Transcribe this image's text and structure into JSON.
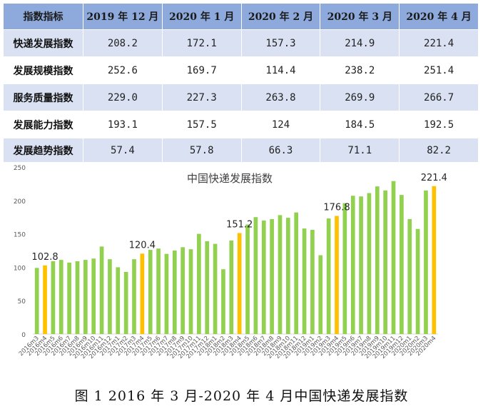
{
  "table": {
    "columns": [
      "指数指标",
      "2019 年 12 月",
      "2020 年 1 月",
      "2020 年 2 月",
      "2020 年 3 月",
      "2020 年 4 月"
    ],
    "rows": [
      {
        "label": "快递发展指数",
        "values": [
          "208.2",
          "172.1",
          "157.3",
          "214.9",
          "221.4"
        ]
      },
      {
        "label": "发展规模指数",
        "values": [
          "252.6",
          "169.7",
          "114.4",
          "238.2",
          "251.4"
        ]
      },
      {
        "label": "服务质量指数",
        "values": [
          "229.0",
          "227.3",
          "263.8",
          "269.9",
          "266.7"
        ]
      },
      {
        "label": "发展能力指数",
        "values": [
          "193.1",
          "157.5",
          "124",
          "184.5",
          "192.5"
        ]
      },
      {
        "label": "发展趋势指数",
        "values": [
          "57.4",
          "57.8",
          "66.3",
          "71.1",
          "82.2"
        ]
      }
    ]
  },
  "chart_data": {
    "type": "bar",
    "title": "中国快递发展指数",
    "ylim": [
      0,
      250
    ],
    "yticks": [
      0,
      50,
      100,
      150,
      200,
      250
    ],
    "grid": false,
    "legend": "none",
    "colors": {
      "normal": "#92d050",
      "highlight": "#ffc000"
    },
    "categories": [
      "2016m3",
      "2016m4",
      "2016m5",
      "2016m6",
      "2016m7",
      "2016m8",
      "2016m9",
      "2016m10",
      "2016m11",
      "2016m12",
      "2017m1",
      "2017m2",
      "2017m3",
      "2017m4",
      "2017m5",
      "2017m6",
      "2017m7",
      "2017m8",
      "2017m9",
      "2017m10",
      "2017m11",
      "2017m12",
      "2018m1",
      "2018m2",
      "2018m3",
      "2018m4",
      "2018m5",
      "2018m6",
      "2018m7",
      "2018m8",
      "2018m9",
      "2018m10",
      "2018m11",
      "2018m12",
      "2019m1",
      "2019m2",
      "2019m3",
      "2019m4",
      "2019m5",
      "2019m6",
      "2019m7",
      "2019m8",
      "2019m9",
      "2019m10",
      "2019m11",
      "2019m12",
      "2020m1",
      "2020m2",
      "2020m3",
      "2020m4"
    ],
    "values": [
      99,
      102.8,
      109,
      111,
      107,
      109,
      111,
      113,
      131,
      112,
      100,
      93,
      112,
      120.4,
      126,
      128,
      120,
      125,
      130,
      127,
      150,
      139,
      135,
      97,
      140,
      151.2,
      164,
      175,
      170,
      172,
      178,
      174,
      182,
      158,
      156,
      118,
      173,
      176.8,
      196,
      207,
      206,
      211,
      221,
      215,
      229,
      208.2,
      172.1,
      157.3,
      214.9,
      221.4
    ],
    "highlight_indices": [
      1,
      13,
      25,
      37,
      49
    ],
    "labels": [
      {
        "index": 1,
        "text": "102.8"
      },
      {
        "index": 13,
        "text": "120.4"
      },
      {
        "index": 25,
        "text": "151.2"
      },
      {
        "index": 37,
        "text": "176.8"
      },
      {
        "index": 49,
        "text": "221.4"
      }
    ]
  },
  "caption": "图 1 2016 年 3 月-2020 年 4 月中国快递发展指数"
}
